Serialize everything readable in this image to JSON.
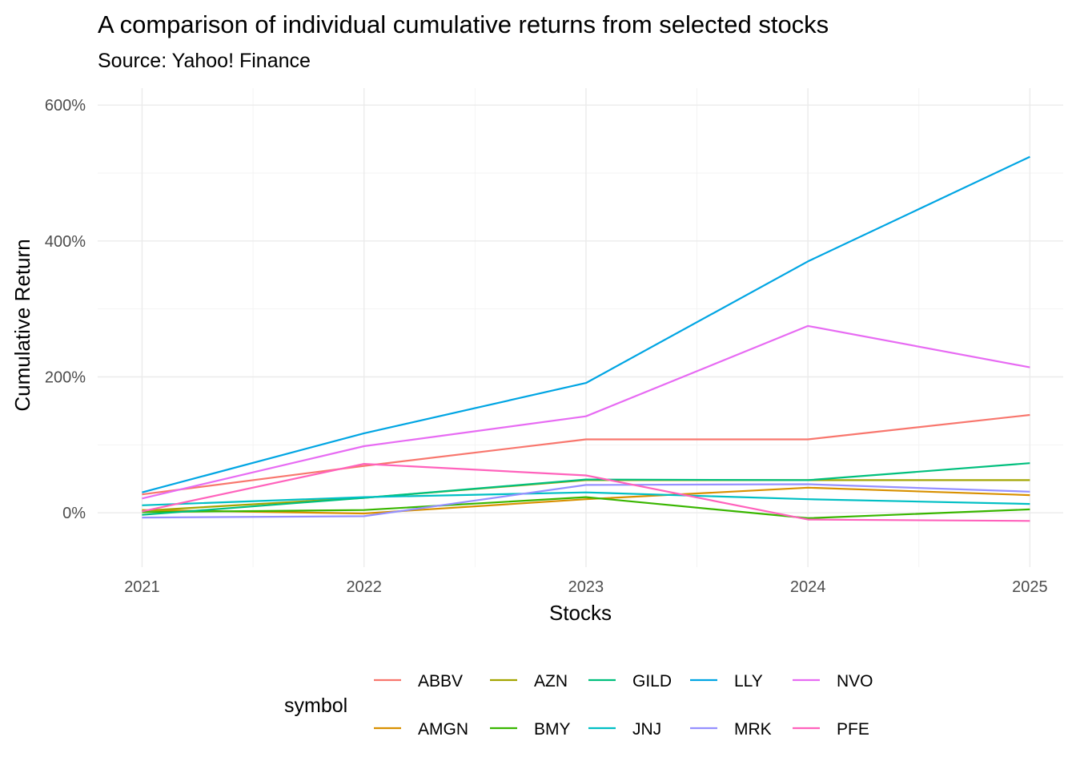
{
  "chart_data": {
    "type": "line",
    "title": "A comparison of individual cumulative returns from selected stocks",
    "subtitle": "Source: Yahoo! Finance",
    "xlabel": "Stocks",
    "ylabel": "Cumulative Return",
    "x": [
      2021,
      2022,
      2023,
      2024,
      2025
    ],
    "xlim": [
      2020.8,
      2025.15
    ],
    "ylim": [
      -80,
      625
    ],
    "y_ticks": [
      0,
      200,
      400,
      600
    ],
    "y_tick_labels": [
      "0%",
      "200%",
      "400%",
      "600%"
    ],
    "y_minor_ticks": [
      100,
      300,
      500
    ],
    "x_tick_labels": [
      "2021",
      "2022",
      "2023",
      "2024",
      "2025"
    ],
    "x_minor_ticks": [
      2021.5,
      2022.5,
      2023.5,
      2024.5
    ],
    "grid": true,
    "legend": {
      "title": "symbol",
      "position": "bottom",
      "rows": 2
    },
    "series": [
      {
        "name": "ABBV",
        "color": "#F8766D",
        "values": [
          27,
          69,
          108,
          108,
          144
        ]
      },
      {
        "name": "AMGN",
        "color": "#D89000",
        "values": [
          4,
          -1,
          20,
          37,
          26
        ]
      },
      {
        "name": "AZN",
        "color": "#A3A500",
        "values": [
          3,
          22,
          48,
          48,
          48
        ]
      },
      {
        "name": "BMY",
        "color": "#39B600",
        "values": [
          1,
          4,
          23,
          -8,
          5
        ]
      },
      {
        "name": "GILD",
        "color": "#00BF7D",
        "values": [
          -3,
          22,
          49,
          48,
          73
        ]
      },
      {
        "name": "JNJ",
        "color": "#00BFC4",
        "values": [
          11,
          23,
          30,
          20,
          13
        ]
      },
      {
        "name": "LLY",
        "color": "#00A5E3",
        "values": [
          30,
          117,
          191,
          370,
          524
        ]
      },
      {
        "name": "MRK",
        "color": "#9590FF",
        "values": [
          -7,
          -5,
          41,
          42,
          31
        ]
      },
      {
        "name": "NVO",
        "color": "#E76BF3",
        "values": [
          21,
          98,
          142,
          275,
          214
        ]
      },
      {
        "name": "PFE",
        "color": "#FF62BC",
        "values": [
          2,
          72,
          55,
          -10,
          -12
        ]
      }
    ]
  }
}
